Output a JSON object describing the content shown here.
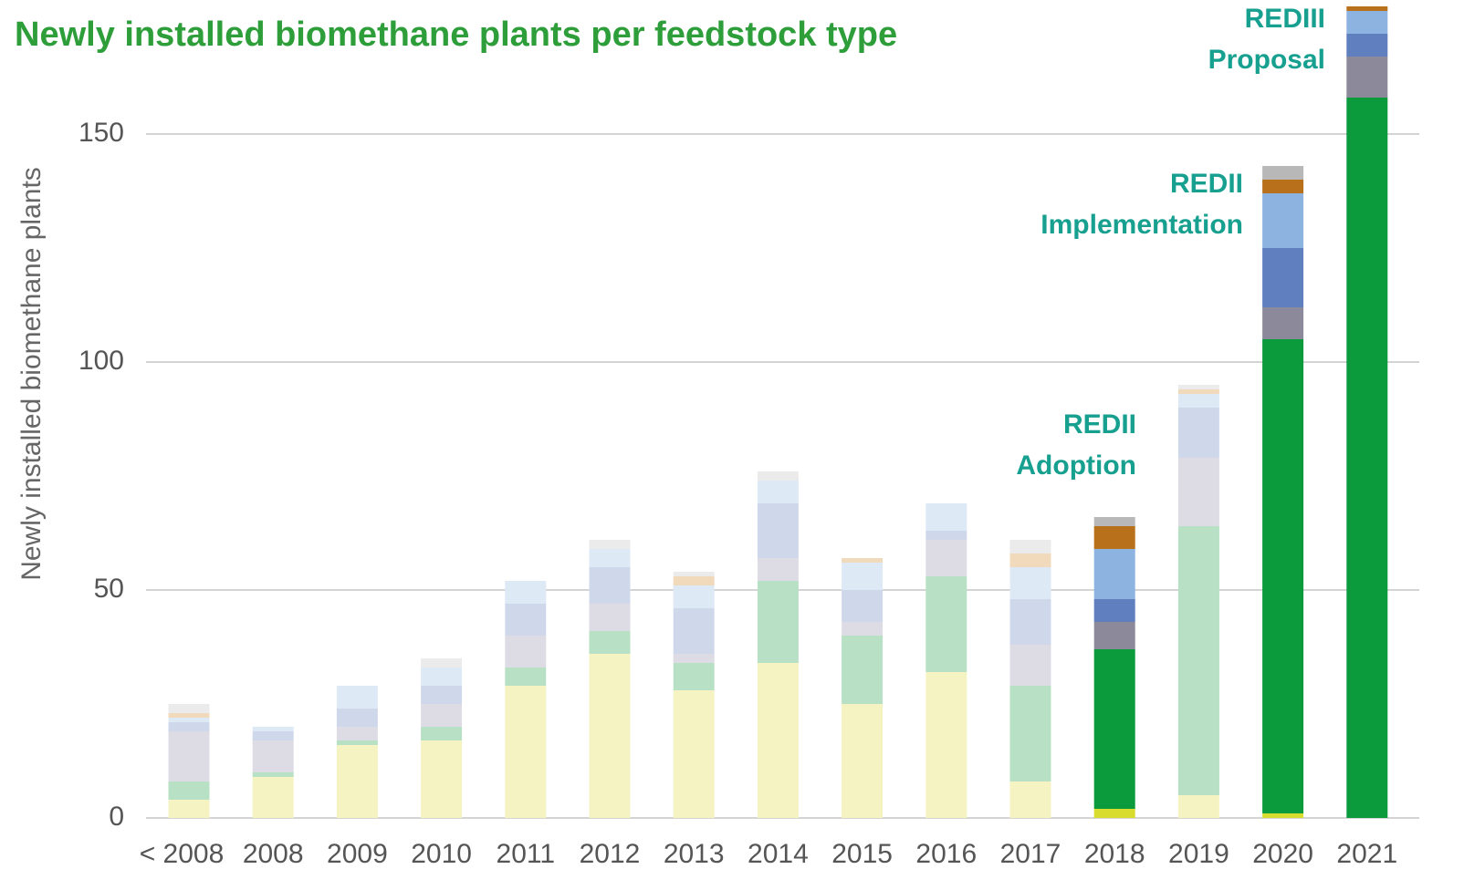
{
  "chart_data": {
    "type": "stacked_bar",
    "title": "Newly installed biomethane plants per feedstock type",
    "y_label": "Newly installed biomethane plants",
    "categories": [
      "< 2008",
      "2008",
      "2009",
      "2010",
      "2011",
      "2012",
      "2013",
      "2014",
      "2015",
      "2016",
      "2017",
      "2018",
      "2019",
      "2020",
      "2021"
    ],
    "highlight": [
      false,
      false,
      false,
      false,
      false,
      false,
      false,
      false,
      false,
      false,
      false,
      true,
      false,
      true,
      true
    ],
    "series": [
      {
        "color": "#d8dc2e",
        "faded_color": "#f6f3c3",
        "values": [
          4,
          9,
          16,
          17,
          29,
          36,
          28,
          34,
          25,
          32,
          8,
          2,
          5,
          1,
          0
        ]
      },
      {
        "color": "#0b9a3c",
        "faded_color": "#b8e0c5",
        "values": [
          4,
          1,
          1,
          3,
          4,
          5,
          6,
          18,
          15,
          21,
          21,
          35,
          59,
          104,
          158
        ]
      },
      {
        "color": "#8c8a9a",
        "faded_color": "#dddce4",
        "values": [
          11,
          7,
          3,
          5,
          7,
          6,
          2,
          5,
          3,
          8,
          9,
          6,
          15,
          7,
          9
        ]
      },
      {
        "color": "#5f7fbf",
        "faded_color": "#cfd8eb",
        "values": [
          2,
          2,
          4,
          4,
          7,
          8,
          10,
          12,
          7,
          2,
          10,
          5,
          11,
          13,
          5
        ]
      },
      {
        "color": "#8db4e0",
        "faded_color": "#dde9f5",
        "values": [
          1,
          1,
          5,
          4,
          5,
          4,
          5,
          5,
          6,
          6,
          7,
          11,
          3,
          12,
          5
        ]
      },
      {
        "color": "#b8701a",
        "faded_color": "#f1d9bb",
        "values": [
          1,
          0,
          0,
          0,
          0,
          0,
          2,
          0,
          1,
          0,
          3,
          5,
          1,
          3,
          1
        ]
      },
      {
        "color": "#b8b8b8",
        "faded_color": "#ebebeb",
        "values": [
          2,
          0,
          0,
          2,
          0,
          2,
          1,
          2,
          0,
          0,
          3,
          2,
          1,
          3,
          0
        ]
      }
    ],
    "ylim": [
      0,
      178
    ],
    "yticks": [
      0,
      50,
      100,
      150
    ],
    "grid": true,
    "annotations": [
      {
        "lines": [
          "REDII",
          "Adoption"
        ]
      },
      {
        "lines": [
          "REDII",
          "Implementation"
        ]
      },
      {
        "lines": [
          "REDIII",
          "Proposal"
        ]
      }
    ]
  }
}
